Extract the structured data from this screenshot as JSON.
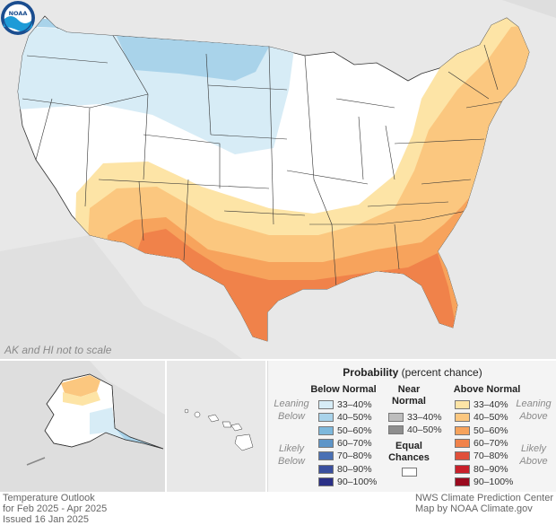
{
  "map": {
    "scale_note": "AK and HI not to scale",
    "logo_text": "NOAA",
    "colors": {
      "background": "#e8e8e8",
      "land": "#ffffff",
      "border": "#333333",
      "below_33_40": "#d7ecf6",
      "below_40_50": "#a9d3ea",
      "above_33_40": "#fde4a6",
      "above_40_50": "#fbc77f",
      "above_50_60": "#f7a35c",
      "above_60_70": "#f0824a"
    }
  },
  "legend": {
    "title_bold": "Probability",
    "title_rest": " (percent chance)",
    "below_header": "Below Normal",
    "near_header": "Near\nNormal",
    "above_header": "Above Normal",
    "leaning_below": "Leaning\nBelow",
    "likely_below": "Likely\nBelow",
    "leaning_above": "Leaning\nAbove",
    "likely_above": "Likely\nAbove",
    "equal_chances": "Equal\nChances",
    "below": [
      {
        "label": "33–40%",
        "color": "#d7ecf6"
      },
      {
        "label": "40–50%",
        "color": "#a9d3ea"
      },
      {
        "label": "50–60%",
        "color": "#7db8dc"
      },
      {
        "label": "60–70%",
        "color": "#5e95c8"
      },
      {
        "label": "70–80%",
        "color": "#4a70b4"
      },
      {
        "label": "80–90%",
        "color": "#3a4f9e"
      },
      {
        "label": "90–100%",
        "color": "#2a2f86"
      }
    ],
    "near": [
      {
        "label": "33–40%",
        "color": "#bdbdbd"
      },
      {
        "label": "40–50%",
        "color": "#8e8e8e"
      }
    ],
    "above": [
      {
        "label": "33–40%",
        "color": "#fde4a6"
      },
      {
        "label": "40–50%",
        "color": "#fbc77f"
      },
      {
        "label": "50–60%",
        "color": "#f7a35c"
      },
      {
        "label": "60–70%",
        "color": "#f0824a"
      },
      {
        "label": "70–80%",
        "color": "#e0503a"
      },
      {
        "label": "80–90%",
        "color": "#c8202a"
      },
      {
        "label": "90–100%",
        "color": "#9a0a1e"
      }
    ]
  },
  "footer": {
    "left_line1": "Temperature Outlook",
    "left_line2": "for Feb 2025 - Apr 2025",
    "left_line3": "Issued 16 Jan 2025",
    "right_line1": "NWS Climate Prediction Center",
    "right_line2": "Map by NOAA Climate.gov"
  }
}
